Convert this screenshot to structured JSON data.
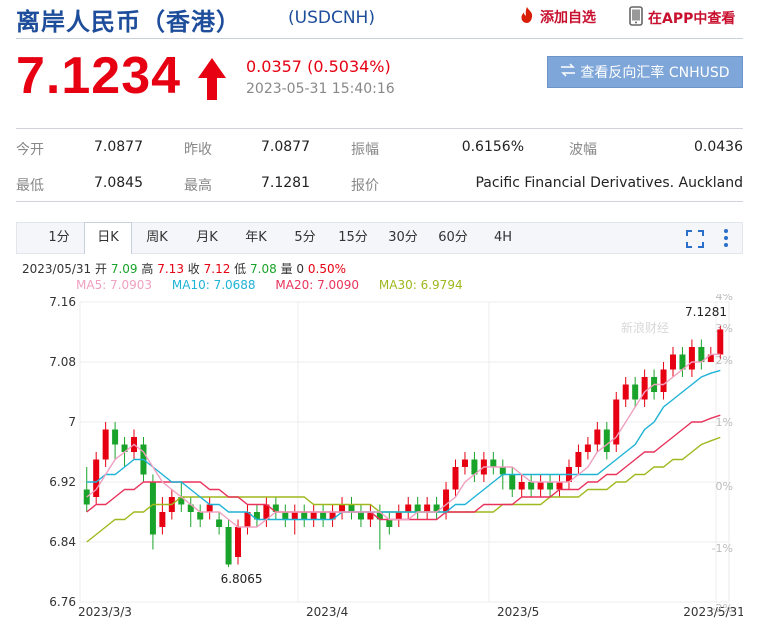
{
  "header": {
    "title": "离岸人民币（香港）",
    "code": "(USDCNH)",
    "fav_label": "添加自选",
    "app_label": "在APP中查看"
  },
  "quote": {
    "price": "7.1234",
    "change": "0.0357 (0.5034%)",
    "datetime": "2023-05-31 15:40:16",
    "reverse_label": "查看反向汇率 CNHUSD",
    "up_color": "#e60012"
  },
  "stats": [
    {
      "label": "今开",
      "value": "7.0877"
    },
    {
      "label": "昨收",
      "value": "7.0877"
    },
    {
      "label": "振幅",
      "value": "0.6156%"
    },
    {
      "label": "波幅",
      "value": "0.0436"
    },
    {
      "label": "最低",
      "value": "7.0845"
    },
    {
      "label": "最高",
      "value": "7.1281"
    },
    {
      "label": "报价",
      "value": "Pacific Financial Derivatives. Auckland"
    }
  ],
  "tabs": [
    "1分",
    "日K",
    "周K",
    "月K",
    "年K",
    "5分",
    "15分",
    "30分",
    "60分",
    "4H"
  ],
  "active_tab": 1,
  "info": {
    "date": "2023/05/31",
    "open_label": "开",
    "open": "7.09",
    "high_label": "高",
    "high": "7.13",
    "close_label": "收",
    "close": "7.12",
    "low_label": "低",
    "low": "7.08",
    "vol_label": "量",
    "vol": "0",
    "pct": "0.50%"
  },
  "ma": {
    "ma5": "MA5: 7.0903",
    "ma10": "MA10: 7.0688",
    "ma20": "MA20: 7.0090",
    "ma30": "MA30: 6.9794"
  },
  "chart_data": {
    "type": "candlestick",
    "y_ticks": [
      "7.16",
      "7.08",
      "7",
      "6.92",
      "6.84",
      "6.76"
    ],
    "ylim": [
      6.76,
      7.16
    ],
    "pct_ticks": [
      "4%",
      "3%",
      "2%",
      "1%",
      "0%",
      "-1%",
      "-2%"
    ],
    "x_labels": [
      "2023/3/3",
      "2023/4",
      "2023/5",
      "2023/5/31"
    ],
    "max_label": "7.1281",
    "min_label": "6.8065",
    "watermark": "新浪财经",
    "colors": {
      "up": "#e60012",
      "down": "#1aa32a",
      "ma5": "#f0a0c0",
      "ma10": "#1fb3d6",
      "ma20": "#e8335c",
      "ma30": "#a0b81e"
    },
    "candles": [
      [
        6.91,
        6.89,
        6.94,
        6.88
      ],
      [
        6.9,
        6.95,
        6.96,
        6.89
      ],
      [
        6.95,
        6.99,
        7.0,
        6.94
      ],
      [
        6.99,
        6.97,
        7.0,
        6.95
      ],
      [
        6.97,
        6.96,
        6.98,
        6.94
      ],
      [
        6.96,
        6.98,
        6.99,
        6.95
      ],
      [
        6.97,
        6.93,
        6.98,
        6.92
      ],
      [
        6.92,
        6.85,
        6.93,
        6.83
      ],
      [
        6.86,
        6.88,
        6.9,
        6.85
      ],
      [
        6.88,
        6.9,
        6.91,
        6.87
      ],
      [
        6.9,
        6.89,
        6.92,
        6.88
      ],
      [
        6.89,
        6.88,
        6.9,
        6.86
      ],
      [
        6.88,
        6.87,
        6.89,
        6.86
      ],
      [
        6.88,
        6.89,
        6.9,
        6.87
      ],
      [
        6.87,
        6.86,
        6.88,
        6.85
      ],
      [
        6.86,
        6.81,
        6.87,
        6.8065
      ],
      [
        6.82,
        6.86,
        6.87,
        6.81
      ],
      [
        6.86,
        6.88,
        6.89,
        6.85
      ],
      [
        6.88,
        6.87,
        6.89,
        6.86
      ],
      [
        6.87,
        6.89,
        6.9,
        6.86
      ],
      [
        6.89,
        6.88,
        6.9,
        6.87
      ],
      [
        6.88,
        6.87,
        6.89,
        6.86
      ],
      [
        6.87,
        6.88,
        6.89,
        6.85
      ],
      [
        6.88,
        6.87,
        6.89,
        6.86
      ],
      [
        6.87,
        6.88,
        6.89,
        6.86
      ],
      [
        6.88,
        6.87,
        6.89,
        6.86
      ],
      [
        6.87,
        6.88,
        6.89,
        6.86
      ],
      [
        6.88,
        6.89,
        6.9,
        6.87
      ],
      [
        6.89,
        6.88,
        6.9,
        6.87
      ],
      [
        6.88,
        6.87,
        6.89,
        6.86
      ],
      [
        6.87,
        6.88,
        6.89,
        6.86
      ],
      [
        6.88,
        6.87,
        6.89,
        6.83
      ],
      [
        6.87,
        6.86,
        6.88,
        6.85
      ],
      [
        6.87,
        6.88,
        6.89,
        6.86
      ],
      [
        6.88,
        6.89,
        6.9,
        6.87
      ],
      [
        6.89,
        6.88,
        6.9,
        6.87
      ],
      [
        6.88,
        6.89,
        6.9,
        6.87
      ],
      [
        6.89,
        6.88,
        6.9,
        6.87
      ],
      [
        6.88,
        6.91,
        6.92,
        6.87
      ],
      [
        6.91,
        6.94,
        6.95,
        6.9
      ],
      [
        6.94,
        6.95,
        6.96,
        6.93
      ],
      [
        6.95,
        6.93,
        6.96,
        6.92
      ],
      [
        6.93,
        6.95,
        6.96,
        6.92
      ],
      [
        6.95,
        6.94,
        6.96,
        6.93
      ],
      [
        6.94,
        6.93,
        6.95,
        6.91
      ],
      [
        6.93,
        6.91,
        6.94,
        6.9
      ],
      [
        6.91,
        6.92,
        6.93,
        6.9
      ],
      [
        6.92,
        6.91,
        6.93,
        6.9
      ],
      [
        6.91,
        6.92,
        6.93,
        6.9
      ],
      [
        6.92,
        6.91,
        6.93,
        6.9
      ],
      [
        6.91,
        6.92,
        6.93,
        6.9
      ],
      [
        6.92,
        6.94,
        6.95,
        6.91
      ],
      [
        6.94,
        6.96,
        6.97,
        6.93
      ],
      [
        6.96,
        6.97,
        6.98,
        6.95
      ],
      [
        6.97,
        6.99,
        7.0,
        6.96
      ],
      [
        6.99,
        6.96,
        7.0,
        6.95
      ],
      [
        6.97,
        7.03,
        7.04,
        6.96
      ],
      [
        7.03,
        7.05,
        7.06,
        7.02
      ],
      [
        7.05,
        7.03,
        7.06,
        7.02
      ],
      [
        7.03,
        7.06,
        7.07,
        7.02
      ],
      [
        7.06,
        7.04,
        7.07,
        7.03
      ],
      [
        7.04,
        7.07,
        7.08,
        7.03
      ],
      [
        7.07,
        7.09,
        7.1,
        7.06
      ],
      [
        7.09,
        7.07,
        7.1,
        7.06
      ],
      [
        7.07,
        7.1,
        7.11,
        7.06
      ],
      [
        7.1,
        7.08,
        7.11,
        7.07
      ],
      [
        7.08,
        7.09,
        7.1,
        7.08
      ],
      [
        7.09,
        7.1234,
        7.1281,
        7.0845
      ]
    ],
    "ma5": [
      6.9,
      6.91,
      6.93,
      6.95,
      6.96,
      6.97,
      6.96,
      6.94,
      6.92,
      6.91,
      6.9,
      6.89,
      6.88,
      6.88,
      6.88,
      6.87,
      6.86,
      6.86,
      6.86,
      6.87,
      6.88,
      6.88,
      6.88,
      6.88,
      6.88,
      6.88,
      6.88,
      6.88,
      6.88,
      6.88,
      6.88,
      6.88,
      6.87,
      6.87,
      6.87,
      6.88,
      6.88,
      6.88,
      6.89,
      6.9,
      6.92,
      6.93,
      6.94,
      6.94,
      6.94,
      6.94,
      6.93,
      6.92,
      6.92,
      6.92,
      6.92,
      6.92,
      6.93,
      6.94,
      6.96,
      6.97,
      6.98,
      7.0,
      7.02,
      7.04,
      7.05,
      7.05,
      7.06,
      7.07,
      7.08,
      7.08,
      7.09,
      7.0903
    ],
    "ma10": [
      6.92,
      6.92,
      6.93,
      6.93,
      6.94,
      6.95,
      6.95,
      6.94,
      6.93,
      6.92,
      6.92,
      6.91,
      6.9,
      6.89,
      6.89,
      6.88,
      6.88,
      6.88,
      6.87,
      6.87,
      6.87,
      6.87,
      6.87,
      6.87,
      6.87,
      6.87,
      6.87,
      6.88,
      6.88,
      6.88,
      6.88,
      6.88,
      6.88,
      6.88,
      6.88,
      6.88,
      6.88,
      6.88,
      6.88,
      6.89,
      6.89,
      6.9,
      6.91,
      6.92,
      6.93,
      6.93,
      6.93,
      6.93,
      6.93,
      6.93,
      6.93,
      6.93,
      6.93,
      6.93,
      6.93,
      6.94,
      6.95,
      6.96,
      6.97,
      6.99,
      7.0,
      7.02,
      7.03,
      7.04,
      7.05,
      7.06,
      7.065,
      7.0688
    ],
    "ma20": [
      6.88,
      6.89,
      6.89,
      6.9,
      6.91,
      6.91,
      6.92,
      6.92,
      6.92,
      6.92,
      6.92,
      6.92,
      6.92,
      6.91,
      6.91,
      6.9,
      6.9,
      6.89,
      6.89,
      6.89,
      6.88,
      6.88,
      6.88,
      6.88,
      6.88,
      6.88,
      6.88,
      6.88,
      6.88,
      6.88,
      6.88,
      6.87,
      6.87,
      6.87,
      6.87,
      6.87,
      6.87,
      6.87,
      6.88,
      6.88,
      6.88,
      6.88,
      6.89,
      6.89,
      6.89,
      6.89,
      6.9,
      6.9,
      6.9,
      6.9,
      6.91,
      6.91,
      6.91,
      6.92,
      6.92,
      6.93,
      6.93,
      6.94,
      6.95,
      6.96,
      6.96,
      6.97,
      6.98,
      6.99,
      7.0,
      7.0,
      7.005,
      7.009
    ],
    "ma30": [
      6.84,
      6.85,
      6.86,
      6.87,
      6.87,
      6.88,
      6.88,
      6.89,
      6.89,
      6.89,
      6.9,
      6.9,
      6.9,
      6.9,
      6.9,
      6.9,
      6.9,
      6.9,
      6.9,
      6.9,
      6.9,
      6.9,
      6.9,
      6.9,
      6.89,
      6.89,
      6.89,
      6.89,
      6.89,
      6.89,
      6.89,
      6.88,
      6.88,
      6.88,
      6.88,
      6.88,
      6.88,
      6.88,
      6.88,
      6.88,
      6.88,
      6.88,
      6.88,
      6.88,
      6.89,
      6.89,
      6.89,
      6.89,
      6.89,
      6.9,
      6.9,
      6.9,
      6.9,
      6.91,
      6.91,
      6.91,
      6.92,
      6.92,
      6.93,
      6.93,
      6.94,
      6.94,
      6.95,
      6.95,
      6.96,
      6.97,
      6.975,
      6.9794
    ]
  }
}
